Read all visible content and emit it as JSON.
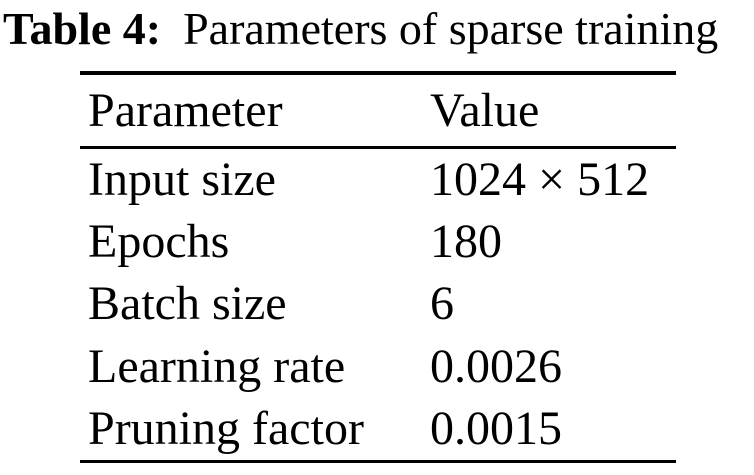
{
  "caption": {
    "label": "Table 4:",
    "text": "Parameters of sparse training"
  },
  "table": {
    "headers": [
      "Parameter",
      "Value"
    ],
    "rows": [
      {
        "param": "Input size",
        "value": "1024 × 512"
      },
      {
        "param": "Epochs",
        "value": "180"
      },
      {
        "param": "Batch size",
        "value": "6"
      },
      {
        "param": "Learning rate",
        "value": "0.0026"
      },
      {
        "param": "Pruning factor",
        "value": "0.0015"
      }
    ]
  },
  "colors": {
    "text": "#000000",
    "background": "#ffffff",
    "rule": "#000000"
  }
}
